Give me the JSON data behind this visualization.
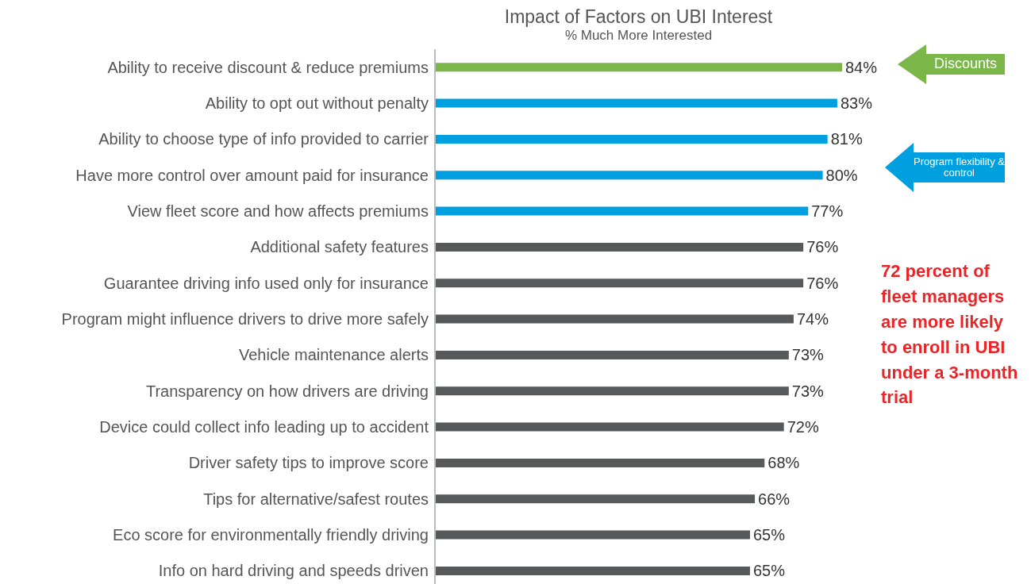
{
  "chart_data": {
    "type": "bar",
    "orientation": "horizontal",
    "title": "Impact of Factors on UBI Interest",
    "subtitle": "% Much More Interested",
    "categories": [
      "Ability to receive discount & reduce premiums",
      "Ability to opt out without penalty",
      "Ability to choose type of info provided to carrier",
      "Have more control over amount paid for insurance",
      "View fleet score and how affects premiums",
      "Additional safety features",
      "Guarantee driving info used only for insurance",
      "Program might influence drivers to drive more safely",
      "Vehicle maintenance alerts",
      "Transparency on how drivers are driving",
      "Device could collect info leading up to accident",
      "Driver safety tips to improve score",
      "Tips for alternative/safest routes",
      "Eco score for environmentally friendly driving",
      "Info on hard driving and speeds driven"
    ],
    "values": [
      84,
      83,
      81,
      80,
      77,
      76,
      76,
      74,
      73,
      73,
      72,
      68,
      66,
      65,
      65
    ],
    "colors": [
      "#7ab648",
      "#009fdf",
      "#009fdf",
      "#009fdf",
      "#009fdf",
      "#58595b",
      "#58595b",
      "#58595b",
      "#58595b",
      "#58595b",
      "#58595b",
      "#58595b",
      "#58595b",
      "#58595b",
      "#58595b"
    ],
    "value_labels": [
      "84%",
      "83%",
      "81%",
      "80%",
      "77%",
      "76%",
      "76%",
      "74%",
      "73%",
      "73%",
      "72%",
      "68%",
      "66%",
      "65%",
      "65%"
    ],
    "annotations": [
      "Discounts",
      "Program flexibility & control",
      "72 percent of fleet managers are more likely to enroll in UBI under a 3-month trial"
    ]
  }
}
